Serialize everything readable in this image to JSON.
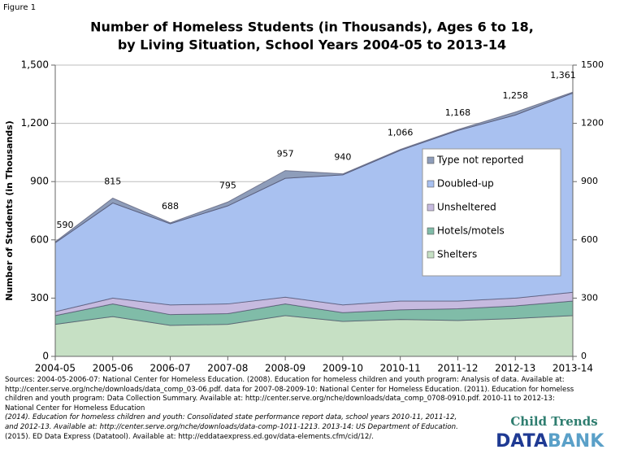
{
  "figure_label": "Figure 1",
  "chart_data": {
    "type": "stacked_area",
    "title": [
      "Number of Homeless Students (in Thousands), Ages 6 to 18,",
      "by Living Situation, School Years 2004-05 to 2013-14"
    ],
    "ylabel": "Number of Students (in Thousands)",
    "categories": [
      "2004-05",
      "2005-06",
      "2006-07",
      "2007-08",
      "2008-09",
      "2009-10",
      "2010-11",
      "2011-12",
      "2012-13",
      "2013-14"
    ],
    "series": [
      {
        "name": "Shelters",
        "color": "#c6e0c4",
        "values": [
          165,
          205,
          160,
          165,
          210,
          180,
          190,
          185,
          195,
          210
        ]
      },
      {
        "name": "Hotels/motels",
        "color": "#80bca8",
        "values": [
          45,
          65,
          55,
          55,
          60,
          45,
          50,
          60,
          65,
          75
        ]
      },
      {
        "name": "Unsheltered",
        "color": "#c6badf",
        "values": [
          20,
          30,
          50,
          50,
          35,
          40,
          45,
          40,
          40,
          45
        ]
      },
      {
        "name": "Doubled-up",
        "color": "#a9c1f0",
        "values": [
          355,
          490,
          418,
          505,
          612,
          670,
          776,
          878,
          943,
          1026
        ]
      },
      {
        "name": "Type not reported",
        "color": "#8e9dba",
        "values": [
          5,
          25,
          5,
          20,
          40,
          5,
          5,
          5,
          15,
          5
        ]
      }
    ],
    "totals": [
      590,
      815,
      688,
      795,
      957,
      940,
      1066,
      1168,
      1258,
      1361
    ],
    "total_labels": [
      "590",
      "815",
      "688",
      "795",
      "957",
      "940",
      "1,066",
      "1,168",
      "1,258",
      "1,361"
    ],
    "ylim": [
      0,
      1500
    ],
    "yticks": [
      0,
      300,
      600,
      900,
      {
        "value": 1200,
        "label": "1,200"
      },
      {
        "value": 1500,
        "label": "1,500"
      }
    ],
    "y2lim": [
      0,
      1500
    ],
    "y2ticks": [
      0,
      300,
      600,
      900,
      1200,
      1500
    ],
    "grid": true,
    "legend": "center-right"
  },
  "source": [
    "Sources: 2004-05-2006-07: National Center for Homeless Education. (2008). Education for homeless children and youth program: Analysis of data. Available at:",
    "http://center.serve.org/nche/downloads/data_comp_03-06.pdf. data for 2007-08-2009-10: National Center for Homeless Education. (2011). Education for homeless",
    "children and youth program: Data Collection Summary. Available at:  http://center.serve.org/nche/downloads/data_comp_0708-0910.pdf. 2010-11 to 2012-13:",
    "National Center for Homeless Education",
    "(2014). Education for homeless children and youth: Consolidated state performance report data, school years 2010-11, 2011-12,",
    "and 2012-13. Available at: http://center.serve.org/nche/downloads/data-comp-1011-1213. 2013-14: US Department of Education.",
    "(2015). ED Data Express (Datatool). Available at: http://eddataexpress.ed.gov/data-elements.cfm/cid/12/."
  ],
  "logo": {
    "top": "Child Trends",
    "left": "DATA",
    "right": "BANK"
  }
}
